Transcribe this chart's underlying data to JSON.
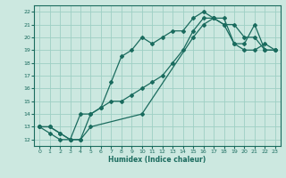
{
  "xlabel": "Humidex (Indice chaleur)",
  "bg_color": "#cce8e0",
  "grid_color": "#9ecfc4",
  "line_color": "#1a6b5e",
  "xlim": [
    -0.5,
    23.5
  ],
  "ylim": [
    11.5,
    22.5
  ],
  "xticks": [
    0,
    1,
    2,
    3,
    4,
    5,
    6,
    7,
    8,
    9,
    10,
    11,
    12,
    13,
    14,
    15,
    16,
    17,
    18,
    19,
    20,
    21,
    22,
    23
  ],
  "yticks": [
    12,
    13,
    14,
    15,
    16,
    17,
    18,
    19,
    20,
    21,
    22
  ],
  "line1_x": [
    0,
    1,
    2,
    3,
    4,
    5,
    6,
    7,
    8,
    9,
    10,
    11,
    12,
    13,
    14,
    15,
    16,
    17,
    18,
    19,
    20,
    21,
    22,
    23
  ],
  "line1_y": [
    13,
    13,
    12.5,
    12,
    12,
    14,
    14.5,
    16.5,
    18.5,
    19,
    20,
    19.5,
    20,
    20.5,
    20.5,
    21.5,
    22,
    21.5,
    21,
    21,
    20,
    20,
    19,
    19
  ],
  "line2_x": [
    0,
    1,
    2,
    3,
    4,
    5,
    6,
    7,
    8,
    9,
    10,
    11,
    12,
    13,
    14,
    15,
    16,
    17,
    18,
    19,
    20,
    21,
    22,
    23
  ],
  "line2_y": [
    13,
    12.5,
    12,
    12,
    14,
    14,
    14.5,
    15,
    15,
    15.5,
    16,
    16.5,
    17,
    18,
    19,
    20.5,
    21.5,
    21.5,
    21.5,
    19.5,
    19,
    19,
    19.5,
    19
  ],
  "line3_x": [
    0,
    1,
    2,
    3,
    4,
    5,
    10,
    15,
    16,
    17,
    18,
    19,
    20,
    21,
    22,
    23
  ],
  "line3_y": [
    13,
    13,
    12.5,
    12,
    12,
    13,
    14,
    20,
    21,
    21.5,
    21,
    19.5,
    19.5,
    21,
    19,
    19
  ]
}
